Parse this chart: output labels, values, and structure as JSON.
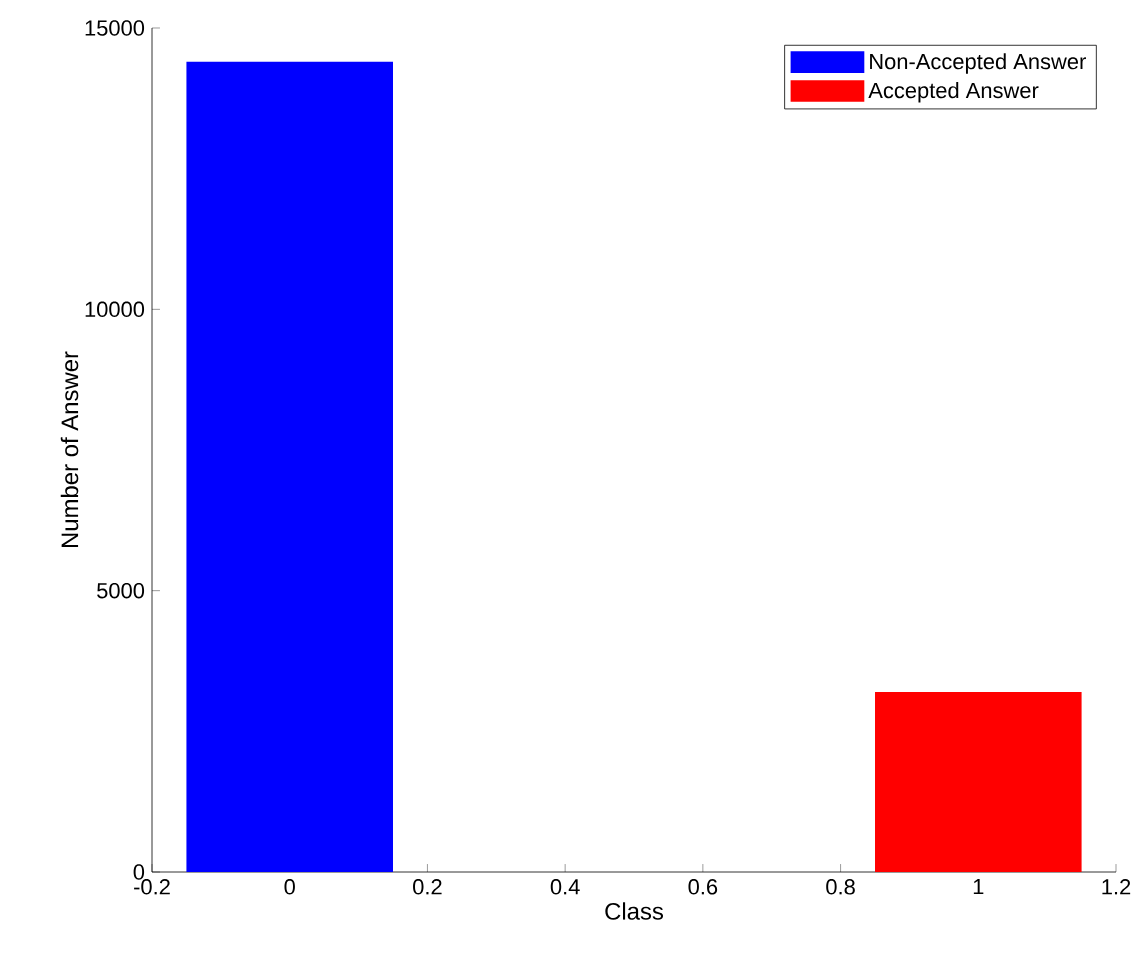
{
  "chart_data": {
    "type": "bar",
    "xlabel": "Class",
    "ylabel": "Number of Answer",
    "xlim": [
      -0.2,
      1.2
    ],
    "xticks": [
      -0.2,
      0,
      0.2,
      0.4,
      0.6,
      0.8,
      1,
      1.2
    ],
    "ylim": [
      0,
      15000
    ],
    "yticks": [
      0,
      5000,
      10000,
      15000
    ],
    "legend": "top right",
    "grid": false,
    "series": [
      {
        "name": "Non-Accepted Answer",
        "color": "#0000ff",
        "x": [
          0
        ],
        "values": [
          14400
        ]
      },
      {
        "name": "Accepted Answer",
        "color": "#ff0000",
        "x": [
          1
        ],
        "values": [
          3200
        ]
      }
    ]
  }
}
